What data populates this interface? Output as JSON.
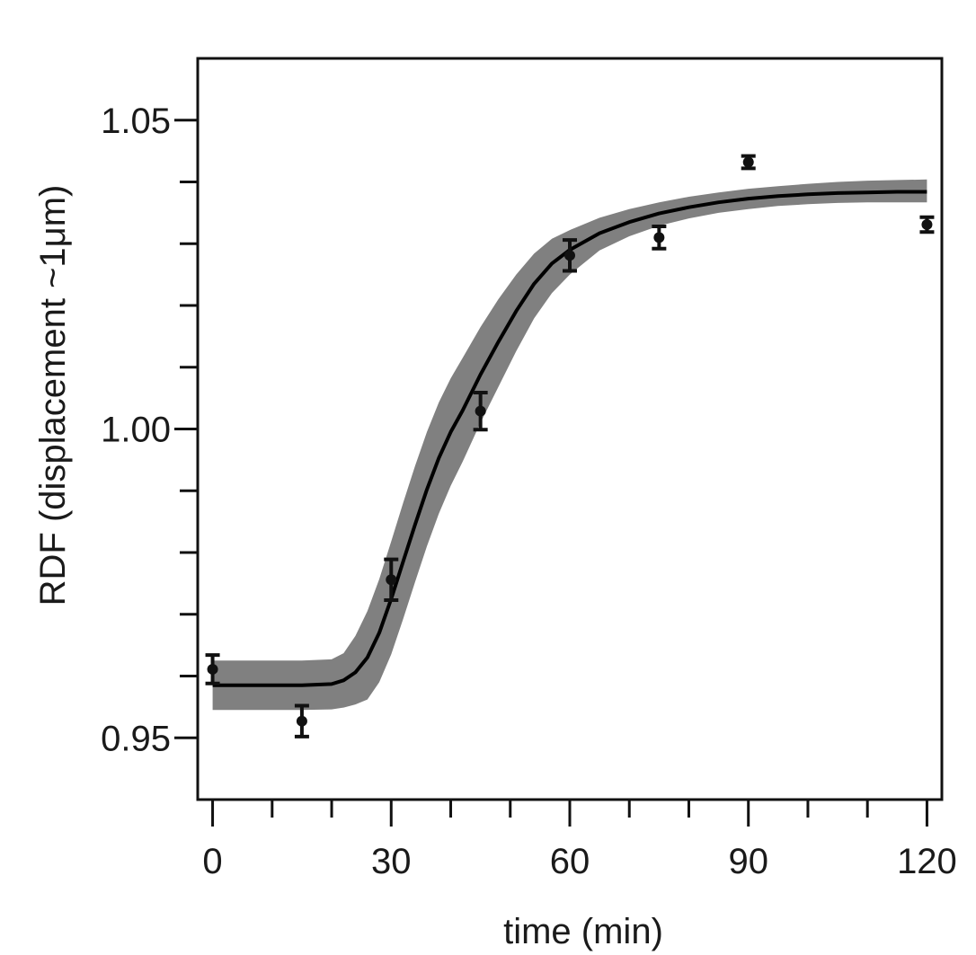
{
  "chart_data": {
    "type": "scatter",
    "title": "",
    "xlabel": "time (min)",
    "ylabel": "RDF (displacement ~1μm)",
    "xlim": [
      -2.5,
      122.5
    ],
    "ylim": [
      0.94,
      1.06
    ],
    "x_major_ticks": [
      0,
      30,
      60,
      90,
      120
    ],
    "x_major_tick_labels": [
      "0",
      "30",
      "60",
      "90",
      "120"
    ],
    "x_minor_ticks": [
      10,
      20,
      40,
      50,
      70,
      80,
      100,
      110
    ],
    "y_major_ticks": [
      0.95,
      1.0,
      1.05
    ],
    "y_major_tick_labels": [
      "0.95",
      "1.00",
      "1.05"
    ],
    "y_minor_ticks": [
      0.96,
      0.97,
      0.98,
      0.99,
      1.01,
      1.02,
      1.03,
      1.04
    ],
    "grid": false,
    "series": [
      {
        "kind": "points_with_error_bars",
        "color": "#111111",
        "x": [
          0,
          15,
          30,
          45,
          60,
          75,
          90,
          120
        ],
        "y": [
          0.9611,
          0.9527,
          0.9756,
          1.0029,
          1.0281,
          1.031,
          1.0432,
          1.0331
        ],
        "err": [
          0.0023,
          0.0025,
          0.0033,
          0.003,
          0.0025,
          0.0018,
          0.001,
          0.0012
        ]
      },
      {
        "kind": "fit_curve",
        "color": "#000000",
        "band_color": "#808080",
        "x": [
          0,
          5,
          10,
          15,
          20,
          22,
          24,
          26,
          28,
          30,
          32,
          34,
          36,
          38,
          40,
          42,
          45,
          48,
          51,
          54,
          57,
          60,
          65,
          70,
          75,
          80,
          85,
          90,
          95,
          100,
          105,
          110,
          115,
          120
        ],
        "y": [
          0.9585,
          0.9585,
          0.9585,
          0.9585,
          0.9587,
          0.9593,
          0.9606,
          0.963,
          0.967,
          0.9725,
          0.9785,
          0.9845,
          0.9902,
          0.9953,
          0.9995,
          1.003,
          1.0088,
          1.0141,
          1.0191,
          1.0235,
          1.0268,
          1.029,
          1.0317,
          1.0335,
          1.0349,
          1.0359,
          1.0367,
          1.0373,
          1.0377,
          1.038,
          1.0382,
          1.0383,
          1.0384,
          1.0384
        ],
        "band_upper": [
          0.9625,
          0.9625,
          0.9625,
          0.9625,
          0.9627,
          0.9637,
          0.9665,
          0.9705,
          0.9757,
          0.9818,
          0.988,
          0.994,
          0.9995,
          1.0043,
          1.0082,
          1.0115,
          1.0165,
          1.021,
          1.025,
          1.0284,
          1.0308,
          1.0322,
          1.0342,
          1.0356,
          1.0367,
          1.0376,
          1.0383,
          1.0389,
          1.0393,
          1.0397,
          1.04,
          1.0402,
          1.0403,
          1.0404
        ],
        "band_lower": [
          0.9545,
          0.9545,
          0.9545,
          0.9545,
          0.9546,
          0.9549,
          0.9554,
          0.9562,
          0.959,
          0.9635,
          0.9692,
          0.9752,
          0.981,
          0.9863,
          0.9908,
          0.9947,
          1.001,
          1.0068,
          1.0126,
          1.0179,
          1.022,
          1.025,
          1.0289,
          1.0312,
          1.0329,
          1.0341,
          1.035,
          1.0356,
          1.0361,
          1.0364,
          1.0366,
          1.0367,
          1.0367,
          1.0367
        ]
      }
    ]
  }
}
